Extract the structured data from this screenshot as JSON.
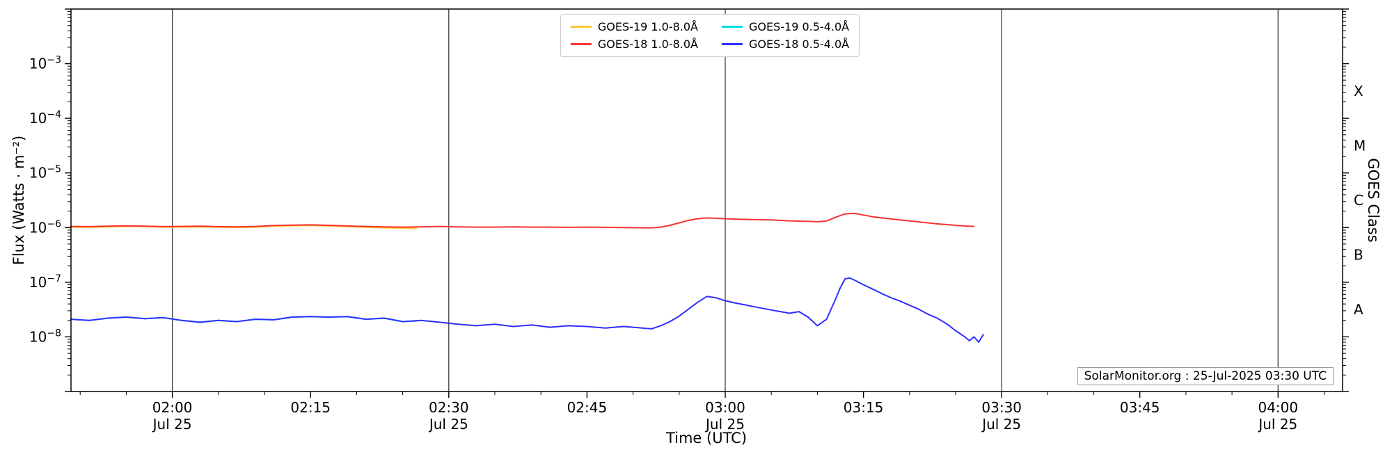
{
  "watermark": "SolarMonitor.org : 25-Jul-2025 03:30 UTC",
  "axes": {
    "xlabel": "Time (UTC)",
    "ylabel_left": "Flux (Watts · m⁻²)",
    "ylabel_right": "GOES Class"
  },
  "legend": {
    "entries": [
      {
        "label": "GOES-19 1.0-8.0Å",
        "color": "#ffc832"
      },
      {
        "label": "GOES-18 1.0-8.0Å",
        "color": "#f93333"
      },
      {
        "label": "GOES-19 0.5-4.0Å",
        "color": "#00dde6"
      },
      {
        "label": "GOES-18 0.5-4.0Å",
        "color": "#2e2eff"
      }
    ]
  },
  "chart_data": {
    "type": "line",
    "title": "",
    "xlabel": "Time (UTC)",
    "ylabel": "Flux (Watts · m⁻²)",
    "ylabel_right": "GOES Class",
    "x_unit": "minutes after 00:00 UTC on 25-Jul-2025",
    "xlim": [
      109,
      247
    ],
    "ylim_log10": [
      -9,
      -2
    ],
    "grid": "vertical lines at 30-min marks",
    "legend_position": "top center, 2 columns",
    "x_gridlines": [
      120,
      150,
      180,
      210,
      240
    ],
    "x_ticks": [
      {
        "t": 120,
        "label": "02:00",
        "sublabel": "Jul 25"
      },
      {
        "t": 135,
        "label": "02:15",
        "sublabel": ""
      },
      {
        "t": 150,
        "label": "02:30",
        "sublabel": "Jul 25"
      },
      {
        "t": 165,
        "label": "02:45",
        "sublabel": ""
      },
      {
        "t": 180,
        "label": "03:00",
        "sublabel": "Jul 25"
      },
      {
        "t": 195,
        "label": "03:15",
        "sublabel": ""
      },
      {
        "t": 210,
        "label": "03:30",
        "sublabel": "Jul 25"
      },
      {
        "t": 225,
        "label": "03:45",
        "sublabel": ""
      },
      {
        "t": 240,
        "label": "04:00",
        "sublabel": "Jul 25"
      }
    ],
    "y_ticks": [
      {
        "exponent": -3
      },
      {
        "exponent": -4
      },
      {
        "exponent": -5
      },
      {
        "exponent": -6
      },
      {
        "exponent": -7
      },
      {
        "exponent": -8
      }
    ],
    "goes_classes": [
      {
        "label": "X",
        "value": 0.000316
      },
      {
        "label": "M",
        "value": 3.16e-05
      },
      {
        "label": "C",
        "value": 3.16e-06
      },
      {
        "label": "B",
        "value": 3.16e-07
      },
      {
        "label": "A",
        "value": 3.16e-08
      }
    ],
    "series": [
      {
        "id": "goes19-long",
        "name": "GOES-19 1.0-8.0Å",
        "color": "#ffc832",
        "points": [
          [
            109,
            1.02e-06
          ],
          [
            111,
            1.01e-06
          ],
          [
            113,
            1.03e-06
          ],
          [
            115,
            1.05e-06
          ],
          [
            117,
            1.04e-06
          ],
          [
            119,
            1.02e-06
          ],
          [
            121,
            1.02e-06
          ],
          [
            123,
            1.03e-06
          ],
          [
            125,
            1.01e-06
          ],
          [
            127,
            1e-06
          ],
          [
            129,
            1.02e-06
          ],
          [
            131,
            1.06e-06
          ],
          [
            133,
            1.08e-06
          ],
          [
            135,
            1.09e-06
          ],
          [
            137,
            1.07e-06
          ],
          [
            139,
            1.04e-06
          ],
          [
            141,
            1.01e-06
          ],
          [
            143,
            9.9e-07
          ],
          [
            145,
            9.7e-07
          ],
          [
            146.5,
            9.6e-07
          ]
        ]
      },
      {
        "id": "goes19-short",
        "name": "GOES-19 0.5-4.0Å",
        "color": "#00dde6",
        "points": [
          [
            109,
            2.1e-08
          ],
          [
            111,
            2e-08
          ],
          [
            113,
            2.2e-08
          ],
          [
            115,
            2.3e-08
          ],
          [
            117,
            2.15e-08
          ],
          [
            119,
            2.25e-08
          ],
          [
            121,
            2e-08
          ],
          [
            123,
            1.85e-08
          ],
          [
            125,
            2e-08
          ],
          [
            127,
            1.9e-08
          ],
          [
            129,
            2.1e-08
          ],
          [
            131,
            2.05e-08
          ],
          [
            133,
            2.3e-08
          ],
          [
            135,
            2.35e-08
          ],
          [
            137,
            2.3e-08
          ],
          [
            139,
            2.35e-08
          ],
          [
            141,
            2.1e-08
          ],
          [
            143,
            2.2e-08
          ],
          [
            145,
            1.9e-08
          ],
          [
            146.5,
            1.95e-08
          ]
        ]
      },
      {
        "id": "goes18-long",
        "name": "GOES-18 1.0-8.0Å",
        "color": "#f93333",
        "points": [
          [
            109,
            1.05e-06
          ],
          [
            111,
            1.04e-06
          ],
          [
            113,
            1.06e-06
          ],
          [
            115,
            1.08e-06
          ],
          [
            117,
            1.06e-06
          ],
          [
            119,
            1.04e-06
          ],
          [
            121,
            1.05e-06
          ],
          [
            123,
            1.06e-06
          ],
          [
            125,
            1.04e-06
          ],
          [
            127,
            1.03e-06
          ],
          [
            129,
            1.05e-06
          ],
          [
            131,
            1.09e-06
          ],
          [
            133,
            1.11e-06
          ],
          [
            135,
            1.12e-06
          ],
          [
            137,
            1.1e-06
          ],
          [
            139,
            1.07e-06
          ],
          [
            141,
            1.05e-06
          ],
          [
            143,
            1.03e-06
          ],
          [
            145,
            1.02e-06
          ],
          [
            147,
            1.03e-06
          ],
          [
            149,
            1.05e-06
          ],
          [
            151,
            1.03e-06
          ],
          [
            153,
            1.02e-06
          ],
          [
            155,
            1.02e-06
          ],
          [
            157,
            1.03e-06
          ],
          [
            159,
            1.02e-06
          ],
          [
            161,
            1.02e-06
          ],
          [
            163,
            1.01e-06
          ],
          [
            165,
            1.02e-06
          ],
          [
            167,
            1.01e-06
          ],
          [
            169,
            1e-06
          ],
          [
            171,
            9.9e-07
          ],
          [
            172,
            9.9e-07
          ],
          [
            173,
            1.02e-06
          ],
          [
            174,
            1.1e-06
          ],
          [
            175,
            1.22e-06
          ],
          [
            176,
            1.35e-06
          ],
          [
            177,
            1.45e-06
          ],
          [
            178,
            1.5e-06
          ],
          [
            179,
            1.48e-06
          ],
          [
            181,
            1.43e-06
          ],
          [
            183,
            1.4e-06
          ],
          [
            185,
            1.38e-06
          ],
          [
            187,
            1.33e-06
          ],
          [
            189,
            1.3e-06
          ],
          [
            190,
            1.28e-06
          ],
          [
            191,
            1.32e-06
          ],
          [
            192,
            1.55e-06
          ],
          [
            193,
            1.78e-06
          ],
          [
            194,
            1.82e-06
          ],
          [
            195,
            1.7e-06
          ],
          [
            196,
            1.58e-06
          ],
          [
            197,
            1.5e-06
          ],
          [
            199,
            1.38e-06
          ],
          [
            201,
            1.27e-06
          ],
          [
            203,
            1.17e-06
          ],
          [
            205,
            1.1e-06
          ],
          [
            206,
            1.07e-06
          ],
          [
            207,
            1.05e-06
          ]
        ]
      },
      {
        "id": "goes18-short",
        "name": "GOES-18 0.5-4.0Å",
        "color": "#2e2eff",
        "points": [
          [
            109,
            2.1e-08
          ],
          [
            111,
            2e-08
          ],
          [
            113,
            2.2e-08
          ],
          [
            115,
            2.3e-08
          ],
          [
            117,
            2.15e-08
          ],
          [
            119,
            2.25e-08
          ],
          [
            121,
            2e-08
          ],
          [
            123,
            1.85e-08
          ],
          [
            125,
            2e-08
          ],
          [
            127,
            1.9e-08
          ],
          [
            129,
            2.1e-08
          ],
          [
            131,
            2.05e-08
          ],
          [
            133,
            2.3e-08
          ],
          [
            135,
            2.35e-08
          ],
          [
            137,
            2.3e-08
          ],
          [
            139,
            2.35e-08
          ],
          [
            141,
            2.1e-08
          ],
          [
            143,
            2.2e-08
          ],
          [
            145,
            1.9e-08
          ],
          [
            147,
            2e-08
          ],
          [
            149,
            1.85e-08
          ],
          [
            151,
            1.7e-08
          ],
          [
            153,
            1.6e-08
          ],
          [
            155,
            1.7e-08
          ],
          [
            157,
            1.55e-08
          ],
          [
            159,
            1.65e-08
          ],
          [
            161,
            1.5e-08
          ],
          [
            163,
            1.6e-08
          ],
          [
            165,
            1.55e-08
          ],
          [
            167,
            1.45e-08
          ],
          [
            169,
            1.55e-08
          ],
          [
            171,
            1.45e-08
          ],
          [
            172,
            1.4e-08
          ],
          [
            173,
            1.6e-08
          ],
          [
            174,
            1.9e-08
          ],
          [
            175,
            2.4e-08
          ],
          [
            176,
            3.2e-08
          ],
          [
            177,
            4.3e-08
          ],
          [
            178,
            5.5e-08
          ],
          [
            179,
            5.2e-08
          ],
          [
            180,
            4.6e-08
          ],
          [
            181,
            4.2e-08
          ],
          [
            182,
            3.9e-08
          ],
          [
            183,
            3.6e-08
          ],
          [
            185,
            3.1e-08
          ],
          [
            186,
            2.9e-08
          ],
          [
            187,
            2.7e-08
          ],
          [
            188,
            2.9e-08
          ],
          [
            189,
            2.3e-08
          ],
          [
            190,
            1.6e-08
          ],
          [
            191,
            2.1e-08
          ],
          [
            192,
            5e-08
          ],
          [
            192.5,
            8e-08
          ],
          [
            193,
            1.15e-07
          ],
          [
            193.5,
            1.2e-07
          ],
          [
            194,
            1.1e-07
          ],
          [
            195,
            9e-08
          ],
          [
            196,
            7.5e-08
          ],
          [
            197,
            6.2e-08
          ],
          [
            198,
            5.2e-08
          ],
          [
            199,
            4.5e-08
          ],
          [
            200,
            3.8e-08
          ],
          [
            201,
            3.2e-08
          ],
          [
            202,
            2.6e-08
          ],
          [
            203,
            2.2e-08
          ],
          [
            204,
            1.75e-08
          ],
          [
            205,
            1.3e-08
          ],
          [
            206,
            1e-08
          ],
          [
            206.5,
            8.5e-09
          ],
          [
            207,
            1e-08
          ],
          [
            207.5,
            8e-09
          ],
          [
            208,
            1.1e-08
          ]
        ]
      }
    ]
  }
}
